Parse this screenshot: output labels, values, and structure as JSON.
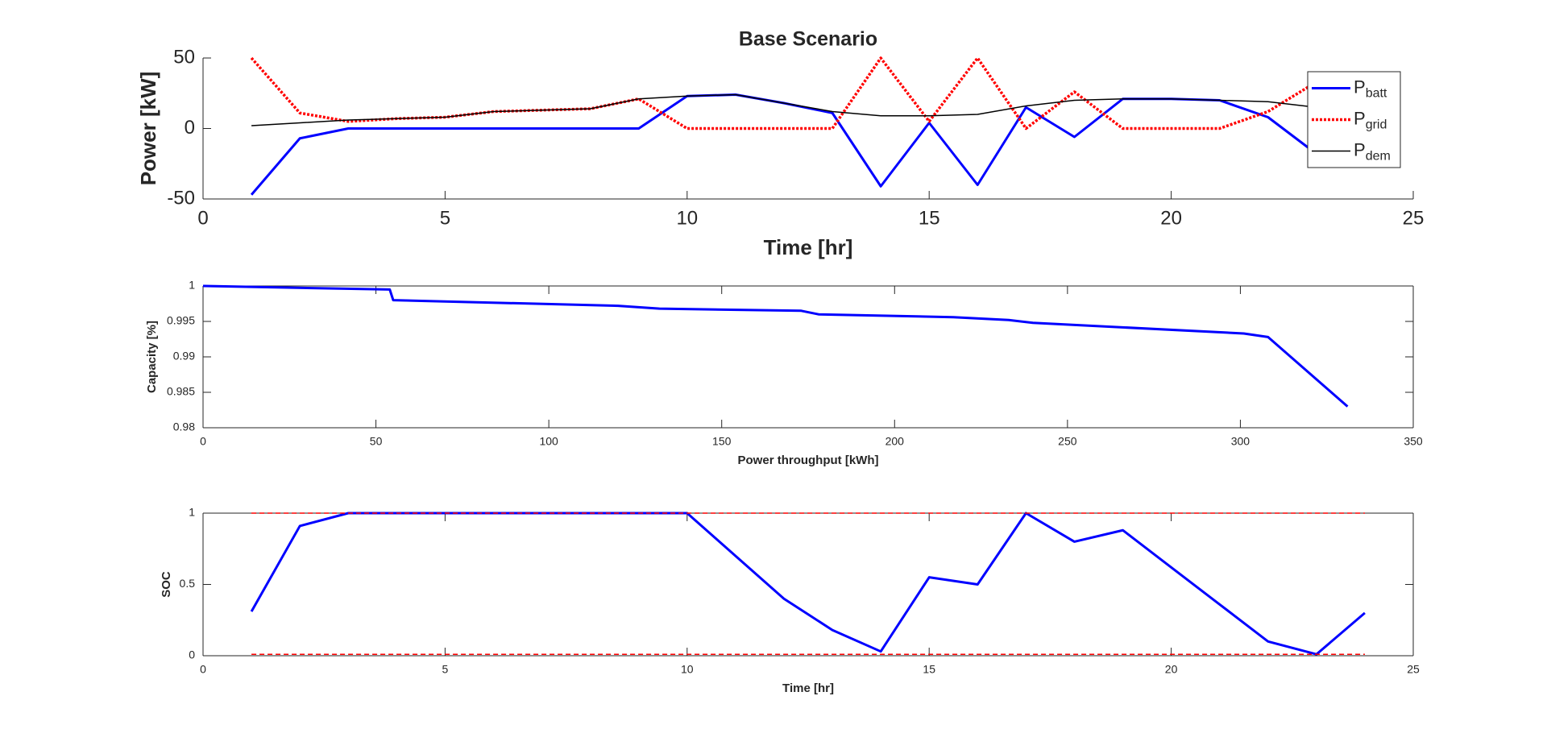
{
  "chart_data": [
    {
      "type": "line",
      "title": "Base Scenario",
      "x_label": "Time [hr]",
      "y_label": "Power [kW]",
      "x": [
        1,
        2,
        3,
        4,
        5,
        6,
        7,
        8,
        9,
        10,
        11,
        12,
        13,
        14,
        15,
        16,
        17,
        18,
        19,
        20,
        21,
        22,
        23,
        24
      ],
      "series": [
        {
          "name": "P",
          "subscript": "batt",
          "color": "#0000ff",
          "style": "solid",
          "values": [
            -47,
            -7,
            0,
            0,
            0,
            0,
            0,
            0,
            0,
            23,
            24,
            18,
            11,
            -41,
            4,
            -40,
            15,
            -6,
            21,
            21,
            20,
            8,
            -18,
            -22
          ]
        },
        {
          "name": "P",
          "subscript": "grid",
          "color": "#ff0000",
          "style": "dotted",
          "values": [
            50,
            11,
            5,
            7,
            8,
            12,
            13,
            14,
            21,
            0,
            0,
            0,
            0,
            50,
            5,
            50,
            0,
            26,
            0,
            0,
            0,
            12,
            33,
            35
          ]
        },
        {
          "name": "P",
          "subscript": "dem",
          "color": "#000000",
          "style": "thin",
          "values": [
            2,
            4,
            6,
            7,
            8,
            12,
            13,
            14,
            21,
            23,
            24,
            18,
            12,
            9,
            9,
            10,
            16,
            20,
            21,
            21,
            20,
            19,
            15,
            13
          ]
        }
      ],
      "xlim": [
        0,
        25
      ],
      "xticks": [
        0,
        5,
        10,
        15,
        20,
        25
      ],
      "ylim": [
        -50,
        50
      ],
      "yticks": [
        -50,
        0,
        50
      ],
      "box": false,
      "legend": "top-right"
    },
    {
      "type": "line",
      "x_label": "Power throughput [kWh]",
      "y_label": "Capacity [%]",
      "series": [
        {
          "color": "#0000ff",
          "style": "solid",
          "x": [
            0,
            54,
            55,
            120,
            132,
            173,
            178,
            217,
            233,
            240,
            301,
            308,
            331
          ],
          "values": [
            1.0,
            0.9995,
            0.998,
            0.9972,
            0.9968,
            0.9965,
            0.996,
            0.9956,
            0.9952,
            0.9948,
            0.9933,
            0.9928,
            0.983
          ]
        }
      ],
      "xlim": [
        0,
        350
      ],
      "xticks": [
        0,
        50,
        100,
        150,
        200,
        250,
        300,
        350
      ],
      "ylim": [
        0.98,
        1
      ],
      "yticks": [
        0.98,
        0.985,
        0.99,
        0.995,
        1
      ],
      "box": true
    },
    {
      "type": "line",
      "x_label": "Time [hr]",
      "y_label": "SOC",
      "x": [
        1,
        2,
        3,
        4,
        5,
        6,
        7,
        8,
        9,
        10,
        11,
        12,
        13,
        14,
        15,
        16,
        17,
        18,
        19,
        20,
        21,
        22,
        23,
        24
      ],
      "series": [
        {
          "color": "#0000ff",
          "style": "solid",
          "values": [
            0.31,
            0.91,
            1,
            1,
            1,
            1,
            1,
            1,
            1,
            1,
            0.7,
            0.4,
            0.18,
            0.03,
            0.55,
            0.5,
            1,
            0.8,
            0.88,
            0.62,
            0.36,
            0.1,
            0.01,
            0.3
          ]
        },
        {
          "color": "#ff0000",
          "style": "dashed",
          "x": [
            1,
            24
          ],
          "values": [
            1,
            1
          ]
        },
        {
          "color": "#ff0000",
          "style": "dashed",
          "x": [
            1,
            24
          ],
          "values": [
            0.01,
            0.01
          ]
        }
      ],
      "xlim": [
        0,
        25
      ],
      "xticks": [
        0,
        5,
        10,
        15,
        20,
        25
      ],
      "ylim": [
        0,
        1
      ],
      "yticks": [
        0,
        0.5,
        1
      ],
      "box": true
    }
  ]
}
